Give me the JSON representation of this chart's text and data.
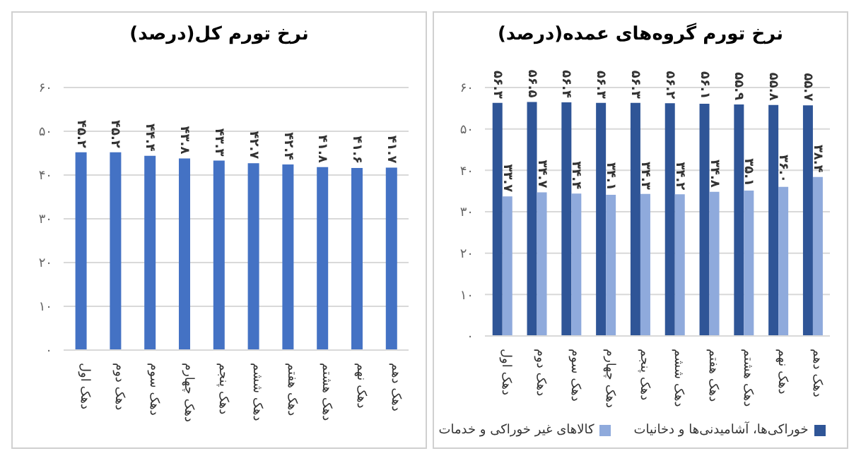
{
  "chart_data": [
    {
      "type": "bar",
      "title": "نرخ تورم کل(درصد)",
      "categories": [
        "دهک اول",
        "دهک دوم",
        "دهک سوم",
        "دهک چهارم",
        "دهک پنجم",
        "دهک ششم",
        "دهک هفتم",
        "دهک هشتم",
        "دهک نهم",
        "دهک دهم"
      ],
      "series": [
        {
          "color": "#4472c4",
          "values": [
            45.2,
            45.2,
            44.4,
            43.8,
            43.3,
            42.7,
            42.4,
            41.8,
            41.6,
            41.7
          ],
          "value_labels": [
            "۴۵.۲",
            "۴۵.۲",
            "۴۴.۴",
            "۴۳.۸",
            "۴۳.۳",
            "۴۲.۷",
            "۴۲.۴",
            "۴۱.۸",
            "۴۱.۶",
            "۴۱.۷"
          ]
        }
      ],
      "ylim": [
        0,
        60
      ],
      "yticks": [
        {
          "value": 0,
          "label": "۰"
        },
        {
          "value": 10,
          "label": "۱۰"
        },
        {
          "value": 20,
          "label": "۲۰"
        },
        {
          "value": 30,
          "label": "۳۰"
        },
        {
          "value": 40,
          "label": "۴۰"
        },
        {
          "value": 50,
          "label": "۵۰"
        },
        {
          "value": 60,
          "label": "۶۰"
        }
      ],
      "grid": "y"
    },
    {
      "type": "bar",
      "title": "نرخ تورم گروه‌های عمده(درصد)",
      "categories": [
        "دهک اول",
        "دهک دوم",
        "دهک سوم",
        "دهک چهارم",
        "دهک پنجم",
        "دهک ششم",
        "دهک هفتم",
        "دهک هشتم",
        "دهک نهم",
        "دهک دهم"
      ],
      "series": [
        {
          "name": "خوراکی‌ها، آشامیدنی‌ها و دخانیات",
          "color": "#2f5597",
          "values": [
            56.3,
            56.5,
            56.4,
            56.3,
            56.3,
            56.2,
            56.1,
            55.9,
            55.8,
            55.7
          ],
          "value_labels": [
            "۵۶.۳",
            "۵۶.۵",
            "۵۶.۴",
            "۵۶.۳",
            "۵۶.۳",
            "۵۶.۲",
            "۵۶.۱",
            "۵۵.۹",
            "۵۵.۸",
            "۵۵.۷"
          ]
        },
        {
          "name": "کالاهای غیر خوراکی و خدمات",
          "color": "#8faadc",
          "values": [
            33.7,
            34.7,
            34.4,
            34.1,
            34.3,
            34.2,
            34.8,
            35.1,
            36.0,
            38.4
          ],
          "value_labels": [
            "۳۳.۷",
            "۳۴.۷",
            "۳۴.۴",
            "۳۴.۱",
            "۳۴.۳",
            "۳۴.۲",
            "۳۴.۸",
            "۳۵.۱",
            "۳۶.۰",
            "۳۸.۴"
          ]
        }
      ],
      "ylim": [
        0,
        60
      ],
      "yticks": [
        {
          "value": 0,
          "label": "۰"
        },
        {
          "value": 10,
          "label": "۱۰"
        },
        {
          "value": 20,
          "label": "۲۰"
        },
        {
          "value": 30,
          "label": "۳۰"
        },
        {
          "value": 40,
          "label": "۴۰"
        },
        {
          "value": 50,
          "label": "۵۰"
        },
        {
          "value": 60,
          "label": "۶۰"
        }
      ],
      "grid": "y",
      "legend": "bottom"
    }
  ]
}
